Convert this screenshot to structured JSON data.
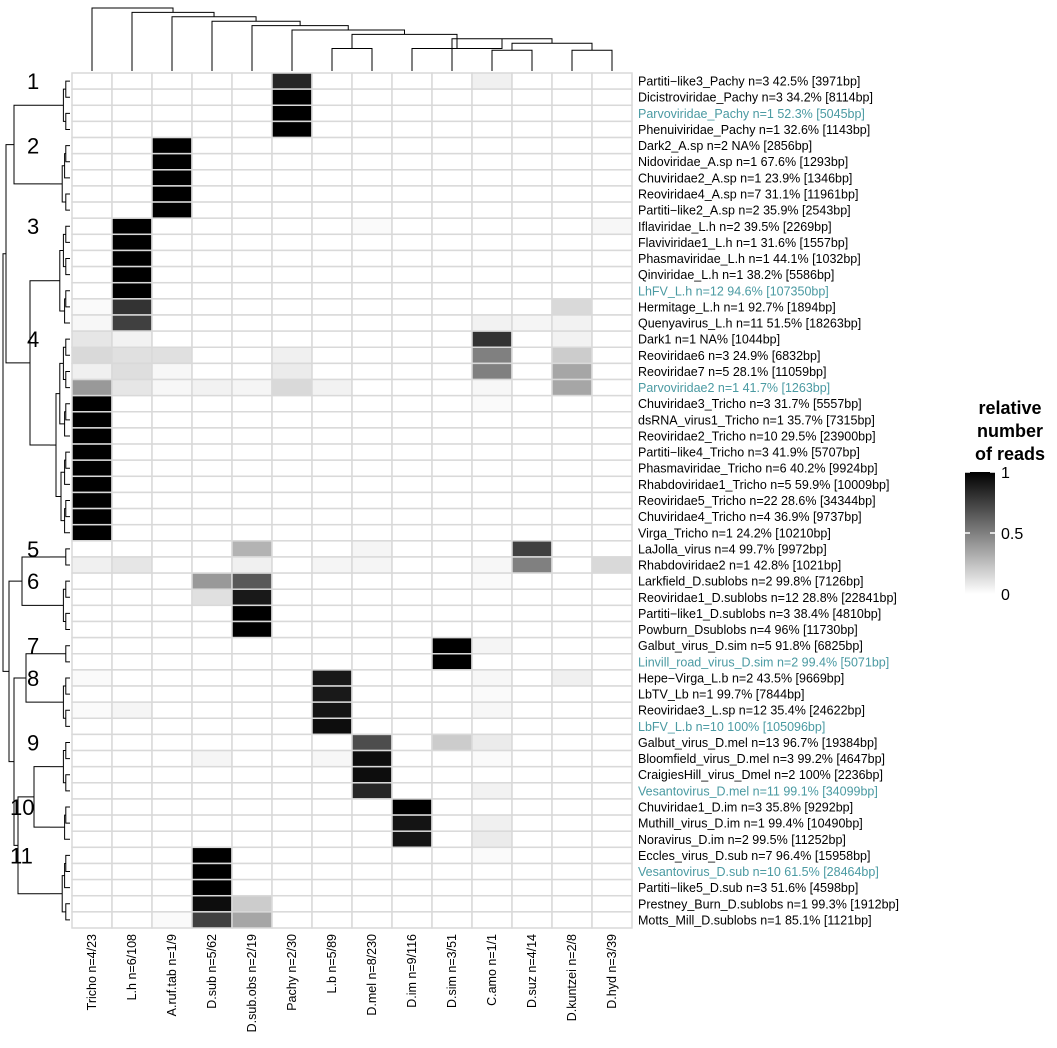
{
  "chart_data": {
    "type": "heatmap",
    "colors": {
      "high": "#000000",
      "low": "#ffffff",
      "grid": "#d9d9d9",
      "highlight_label": "#4a9aa2"
    },
    "columns": [
      "Tricho n=4/23",
      "L.h n=6/108",
      "A.ruf.tab n=1/9",
      "D.sub n=5/62",
      "D.sub.obs n=2/19",
      "Pachy n=2/30",
      "L.b n=5/89",
      "D.mel n=8/230",
      "D.im n=9/116",
      "D.sim n=3/51",
      "C.amo n=1/1",
      "D.suz n=4/14",
      "D.kuntzei n=2/8",
      "D.hyd n=3/39"
    ],
    "rows": [
      {
        "label": "Partiti−like3_Pachy n=3 42.5% [3971bp]",
        "highlight": false,
        "values": [
          0,
          0,
          0,
          0,
          0,
          0.85,
          0,
          0,
          0,
          0,
          0.06,
          0,
          0,
          0
        ]
      },
      {
        "label": "Dicistroviridae_Pachy n=3 34.2% [8114bp]",
        "highlight": false,
        "values": [
          0,
          0,
          0,
          0,
          0,
          1,
          0,
          0,
          0,
          0,
          0,
          0,
          0,
          0
        ]
      },
      {
        "label": "Parvoviridae_Pachy n=1 52.3% [5045bp]",
        "highlight": true,
        "values": [
          0,
          0,
          0,
          0,
          0,
          1,
          0,
          0,
          0,
          0,
          0,
          0,
          0,
          0
        ]
      },
      {
        "label": "Phenuiviridae_Pachy n=1 32.6% [1143bp]",
        "highlight": false,
        "values": [
          0,
          0,
          0,
          0,
          0,
          1,
          0,
          0,
          0,
          0,
          0,
          0,
          0,
          0
        ]
      },
      {
        "label": "Dark2_A.sp n=2 NA% [2856bp]",
        "highlight": false,
        "values": [
          0,
          0,
          1,
          0,
          0,
          0,
          0,
          0,
          0,
          0,
          0,
          0,
          0,
          0
        ]
      },
      {
        "label": "Nidoviridae_A.sp n=1 67.6% [1293bp]",
        "highlight": false,
        "values": [
          0,
          0,
          1,
          0,
          0,
          0,
          0,
          0,
          0,
          0,
          0,
          0,
          0,
          0
        ]
      },
      {
        "label": "Chuviridae2_A.sp n=1 23.9% [1346bp]",
        "highlight": false,
        "values": [
          0,
          0,
          1,
          0,
          0,
          0,
          0,
          0,
          0,
          0,
          0,
          0,
          0,
          0
        ]
      },
      {
        "label": "Reoviridae4_A.sp n=7 31.1% [11961bp]",
        "highlight": false,
        "values": [
          0,
          0,
          1,
          0,
          0,
          0,
          0,
          0,
          0,
          0,
          0,
          0,
          0,
          0
        ]
      },
      {
        "label": "Partiti−like2_A.sp n=2 35.9% [2543bp]",
        "highlight": false,
        "values": [
          0,
          0,
          1,
          0,
          0,
          0,
          0,
          0,
          0,
          0,
          0,
          0,
          0,
          0
        ]
      },
      {
        "label": "Iflaviridae_L.h n=2 39.5% [2269bp]",
        "highlight": false,
        "values": [
          0,
          1,
          0,
          0,
          0,
          0,
          0,
          0.02,
          0,
          0,
          0,
          0,
          0,
          0.03
        ]
      },
      {
        "label": "Flaviviridae1_L.h n=1 31.6% [1557bp]",
        "highlight": false,
        "values": [
          0,
          1,
          0,
          0,
          0,
          0,
          0,
          0,
          0,
          0,
          0,
          0,
          0,
          0
        ]
      },
      {
        "label": "Phasmaviridae_L.h n=1 44.1% [1032bp]",
        "highlight": false,
        "values": [
          0,
          1,
          0,
          0,
          0,
          0,
          0,
          0,
          0,
          0,
          0,
          0,
          0,
          0
        ]
      },
      {
        "label": "Qinviridae_L.h n=1 38.2% [5586bp]",
        "highlight": false,
        "values": [
          0,
          1,
          0,
          0,
          0,
          0,
          0,
          0,
          0,
          0,
          0,
          0,
          0,
          0
        ]
      },
      {
        "label": "LhFV_L.h n=12 94.6% [107350bp]",
        "highlight": true,
        "values": [
          0,
          1,
          0,
          0,
          0,
          0,
          0,
          0,
          0,
          0,
          0,
          0,
          0,
          0
        ]
      },
      {
        "label": "Hermitage_L.h n=1 92.7% [1894bp]",
        "highlight": false,
        "values": [
          0.02,
          0.8,
          0,
          0,
          0,
          0,
          0,
          0,
          0,
          0,
          0,
          0,
          0.15,
          0
        ]
      },
      {
        "label": "Quenyavirus_L.h n=11 51.5% [18263bp]",
        "highlight": false,
        "values": [
          0.03,
          0.75,
          0,
          0,
          0,
          0,
          0,
          0,
          0,
          0,
          0.05,
          0.04,
          0.05,
          0
        ]
      },
      {
        "label": "Dark1 n=1 NA% [1044bp]",
        "highlight": false,
        "values": [
          0.1,
          0.05,
          0,
          0,
          0,
          0,
          0,
          0,
          0,
          0,
          0.8,
          0,
          0.05,
          0
        ]
      },
      {
        "label": "Reoviridae6 n=3 24.9% [6832bp]",
        "highlight": false,
        "values": [
          0.15,
          0.12,
          0.12,
          0,
          0,
          0.06,
          0,
          0,
          0,
          0,
          0.5,
          0,
          0.2,
          0
        ]
      },
      {
        "label": "Reoviridae7 n=5 28.1% [11059bp]",
        "highlight": false,
        "values": [
          0.06,
          0.13,
          0.03,
          0,
          0,
          0.08,
          0,
          0,
          0,
          0,
          0.5,
          0,
          0.35,
          0
        ]
      },
      {
        "label": "Parvoviridae2 n=1 41.7% [1263bp]",
        "highlight": true,
        "values": [
          0.4,
          0.1,
          0.03,
          0.05,
          0.04,
          0.15,
          0.05,
          0,
          0,
          0,
          0.03,
          0,
          0.35,
          0
        ]
      },
      {
        "label": "Chuviridae3_Tricho n=3 31.7% [5557bp]",
        "highlight": false,
        "values": [
          1,
          0,
          0,
          0,
          0,
          0,
          0,
          0,
          0,
          0,
          0.02,
          0,
          0,
          0
        ]
      },
      {
        "label": "dsRNA_virus1_Tricho n=1 35.7% [7315bp]",
        "highlight": false,
        "values": [
          1,
          0,
          0,
          0,
          0,
          0,
          0,
          0,
          0,
          0,
          0,
          0,
          0,
          0
        ]
      },
      {
        "label": "Reoviridae2_Tricho n=10 29.5% [23900bp]",
        "highlight": false,
        "values": [
          1,
          0,
          0,
          0,
          0,
          0,
          0,
          0,
          0,
          0,
          0,
          0,
          0,
          0
        ]
      },
      {
        "label": "Partiti−like4_Tricho n=3 41.9% [5707bp]",
        "highlight": false,
        "values": [
          1,
          0,
          0,
          0,
          0,
          0,
          0,
          0,
          0,
          0,
          0,
          0,
          0,
          0
        ]
      },
      {
        "label": "Phasmaviridae_Tricho n=6 40.2% [9924bp]",
        "highlight": false,
        "values": [
          1,
          0,
          0,
          0,
          0,
          0,
          0,
          0,
          0,
          0,
          0,
          0,
          0,
          0
        ]
      },
      {
        "label": "Rhabdoviridae1_Tricho n=5 59.9% [10009bp]",
        "highlight": false,
        "values": [
          1,
          0,
          0,
          0,
          0,
          0,
          0,
          0,
          0,
          0,
          0,
          0,
          0,
          0
        ]
      },
      {
        "label": "Reoviridae5_Tricho n=22 28.6% [34344bp]",
        "highlight": false,
        "values": [
          1,
          0,
          0,
          0,
          0,
          0,
          0,
          0,
          0,
          0,
          0,
          0,
          0,
          0
        ]
      },
      {
        "label": "Chuviridae4_Tricho n=4 36.9% [9737bp]",
        "highlight": false,
        "values": [
          1,
          0,
          0,
          0,
          0,
          0,
          0,
          0,
          0,
          0,
          0,
          0,
          0,
          0
        ]
      },
      {
        "label": "Virga_Tricho n=1 24.2% [10210bp]",
        "highlight": false,
        "values": [
          1,
          0,
          0,
          0,
          0,
          0,
          0,
          0,
          0,
          0,
          0,
          0,
          0,
          0
        ]
      },
      {
        "label": "LaJolla_virus n=4 99.7% [9972bp]",
        "highlight": false,
        "values": [
          0,
          0,
          0,
          0,
          0.3,
          0,
          0,
          0.04,
          0,
          0,
          0,
          0.75,
          0,
          0
        ]
      },
      {
        "label": "Rhabdoviridae2 n=1 42.8% [1021bp]",
        "highlight": false,
        "values": [
          0.06,
          0.1,
          0,
          0,
          0.06,
          0,
          0.04,
          0.04,
          0,
          0,
          0.03,
          0.5,
          0,
          0.15
        ]
      },
      {
        "label": "Larkfield_D.sublobs n=2 99.8% [7126bp]",
        "highlight": false,
        "values": [
          0,
          0,
          0,
          0.4,
          0.65,
          0,
          0,
          0,
          0,
          0,
          0.02,
          0,
          0,
          0
        ]
      },
      {
        "label": "Reoviridae1_D.sublobs n=12 28.8% [22841bp]",
        "highlight": false,
        "values": [
          0,
          0,
          0,
          0.12,
          0.9,
          0,
          0,
          0,
          0,
          0,
          0,
          0,
          0,
          0
        ]
      },
      {
        "label": "Partiti−like1_D.sublobs n=3 38.4% [4810bp]",
        "highlight": false,
        "values": [
          0,
          0,
          0,
          0,
          1,
          0,
          0,
          0,
          0,
          0,
          0,
          0,
          0,
          0
        ]
      },
      {
        "label": "Powburn_Dsublobs n=4 96% [11730bp]",
        "highlight": false,
        "values": [
          0,
          0,
          0,
          0,
          1,
          0,
          0,
          0,
          0,
          0,
          0,
          0,
          0,
          0
        ]
      },
      {
        "label": "Galbut_virus_D.sim n=5 91.8% [6825bp]",
        "highlight": false,
        "values": [
          0,
          0,
          0,
          0,
          0,
          0,
          0,
          0,
          0,
          1,
          0.04,
          0,
          0,
          0
        ]
      },
      {
        "label": "Linvill_road_virus_D.sim n=2 99.4% [5071bp]",
        "highlight": true,
        "values": [
          0,
          0,
          0,
          0,
          0,
          0,
          0,
          0,
          0,
          1,
          0,
          0,
          0,
          0
        ]
      },
      {
        "label": "Hepe−Virga_L.b n=2 43.5% [9669bp]",
        "highlight": false,
        "values": [
          0.02,
          0,
          0,
          0,
          0,
          0,
          0.9,
          0,
          0,
          0,
          0.03,
          0,
          0.06,
          0
        ]
      },
      {
        "label": "LbTV_Lb n=1 99.7% [7844bp]",
        "highlight": false,
        "values": [
          0,
          0,
          0,
          0,
          0,
          0,
          0.9,
          0,
          0,
          0,
          0.02,
          0,
          0,
          0
        ]
      },
      {
        "label": "Reoviridae3_L.sp n=12 35.4% [24622bp]",
        "highlight": false,
        "values": [
          0.02,
          0.04,
          0,
          0,
          0,
          0,
          0.92,
          0,
          0,
          0,
          0.03,
          0,
          0,
          0
        ]
      },
      {
        "label": "LbFV_L.b n=10 100% [105096bp]",
        "highlight": true,
        "values": [
          0,
          0,
          0,
          0,
          0,
          0,
          0.95,
          0,
          0,
          0,
          0,
          0,
          0,
          0
        ]
      },
      {
        "label": "Galbut_virus_D.mel n=13 96.7% [19384bp]",
        "highlight": false,
        "values": [
          0,
          0,
          0,
          0,
          0,
          0,
          0,
          0.7,
          0,
          0.2,
          0.08,
          0,
          0,
          0
        ]
      },
      {
        "label": "Bloomfield_virus_D.mel n=3 99.2% [4647bp]",
        "highlight": false,
        "values": [
          0,
          0,
          0,
          0.04,
          0,
          0,
          0.03,
          0.95,
          0,
          0,
          0.02,
          0,
          0,
          0
        ]
      },
      {
        "label": "CraigiesHill_virus_Dmel n=2 100% [2236bp]",
        "highlight": false,
        "values": [
          0,
          0,
          0,
          0,
          0,
          0,
          0,
          0.95,
          0,
          0,
          0,
          0,
          0,
          0
        ]
      },
      {
        "label": "Vesantovirus_D.mel n=11 99.1% [34099bp]",
        "highlight": true,
        "values": [
          0,
          0,
          0,
          0,
          0,
          0,
          0,
          0.85,
          0,
          0,
          0.05,
          0,
          0,
          0
        ]
      },
      {
        "label": "Chuviridae1_D.im n=3 35.8% [9292bp]",
        "highlight": false,
        "values": [
          0,
          0,
          0,
          0,
          0,
          0,
          0,
          0,
          1,
          0,
          0,
          0,
          0,
          0
        ]
      },
      {
        "label": "Muthill_virus_D.im n=1 99.4% [10490bp]",
        "highlight": false,
        "values": [
          0,
          0,
          0,
          0,
          0,
          0,
          0,
          0,
          0.92,
          0,
          0.06,
          0,
          0,
          0
        ]
      },
      {
        "label": "Noravirus_D.im n=2 99.5% [11252bp]",
        "highlight": false,
        "values": [
          0,
          0,
          0,
          0,
          0,
          0,
          0,
          0,
          0.92,
          0,
          0.08,
          0,
          0,
          0
        ]
      },
      {
        "label": "Eccles_virus_D.sub n=7 96.4% [15958bp]",
        "highlight": false,
        "values": [
          0,
          0,
          0,
          1,
          0,
          0,
          0,
          0,
          0,
          0,
          0.02,
          0,
          0,
          0
        ]
      },
      {
        "label": "Vesantovirus_D.sub n=10 61.5% [28464bp]",
        "highlight": true,
        "values": [
          0,
          0,
          0,
          1,
          0,
          0,
          0,
          0,
          0,
          0,
          0,
          0,
          0,
          0
        ]
      },
      {
        "label": "Partiti−like5_D.sub n=3 51.6% [4598bp]",
        "highlight": false,
        "values": [
          0,
          0,
          0,
          1,
          0,
          0,
          0,
          0,
          0,
          0,
          0,
          0,
          0,
          0
        ]
      },
      {
        "label": "Prestney_Burn_D.sublobs n=1 99.3% [1912bp]",
        "highlight": false,
        "values": [
          0,
          0,
          0,
          0.95,
          0.2,
          0,
          0,
          0,
          0,
          0,
          0,
          0,
          0,
          0
        ]
      },
      {
        "label": "Motts_Mill_D.sublobs n=1 85.1% [1121bp]",
        "highlight": false,
        "values": [
          0,
          0,
          0.02,
          0.75,
          0.35,
          0,
          0,
          0,
          0,
          0,
          0,
          0,
          0,
          0
        ]
      }
    ],
    "clusters": [
      {
        "label": "1",
        "first_row": 0,
        "last_row": 3
      },
      {
        "label": "2",
        "first_row": 4,
        "last_row": 8
      },
      {
        "label": "3",
        "first_row": 9,
        "last_row": 15
      },
      {
        "label": "4",
        "first_row": 16,
        "last_row": 28
      },
      {
        "label": "5",
        "first_row": 29,
        "last_row": 30
      },
      {
        "label": "6",
        "first_row": 31,
        "last_row": 34
      },
      {
        "label": "7",
        "first_row": 35,
        "last_row": 36
      },
      {
        "label": "8",
        "first_row": 37,
        "last_row": 40
      },
      {
        "label": "9",
        "first_row": 41,
        "last_row": 44
      },
      {
        "label": "10",
        "first_row": 45,
        "last_row": 47
      },
      {
        "label": "11",
        "first_row": 48,
        "last_row": 52
      }
    ],
    "legend": {
      "title_lines": [
        "relative",
        "number",
        "of reads"
      ],
      "ticks": [
        {
          "value": 1,
          "label": "1"
        },
        {
          "value": 0.5,
          "label": "0.5"
        },
        {
          "value": 0,
          "label": "0"
        }
      ],
      "range": [
        0,
        1
      ],
      "placement": "right"
    }
  }
}
